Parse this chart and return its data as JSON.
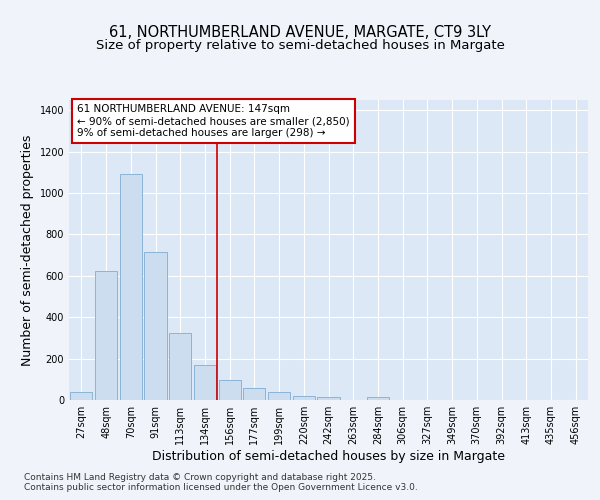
{
  "title_line1": "61, NORTHUMBERLAND AVENUE, MARGATE, CT9 3LY",
  "title_line2": "Size of property relative to semi-detached houses in Margate",
  "xlabel": "Distribution of semi-detached houses by size in Margate",
  "ylabel": "Number of semi-detached properties",
  "categories": [
    "27sqm",
    "48sqm",
    "70sqm",
    "91sqm",
    "113sqm",
    "134sqm",
    "156sqm",
    "177sqm",
    "199sqm",
    "220sqm",
    "242sqm",
    "263sqm",
    "284sqm",
    "306sqm",
    "327sqm",
    "349sqm",
    "370sqm",
    "392sqm",
    "413sqm",
    "435sqm",
    "456sqm"
  ],
  "values": [
    38,
    625,
    1090,
    715,
    325,
    170,
    95,
    60,
    38,
    20,
    14,
    0,
    14,
    0,
    0,
    0,
    0,
    0,
    0,
    0,
    0
  ],
  "bar_color": "#ccddf0",
  "bar_edge_color": "#8ab4d8",
  "vline_x": 6,
  "vline_color": "#cc0000",
  "annotation_text": "61 NORTHUMBERLAND AVENUE: 147sqm\n← 90% of semi-detached houses are smaller (2,850)\n9% of semi-detached houses are larger (298) →",
  "annotation_box_color": "#ffffff",
  "annotation_box_edge_color": "#cc0000",
  "ylim": [
    0,
    1450
  ],
  "yticks": [
    0,
    200,
    400,
    600,
    800,
    1000,
    1200,
    1400
  ],
  "fig_bg_color": "#f0f4fa",
  "plot_bg_color": "#dce8f5",
  "grid_color": "#ffffff",
  "footer_text": "Contains HM Land Registry data © Crown copyright and database right 2025.\nContains public sector information licensed under the Open Government Licence v3.0.",
  "title_fontsize": 10.5,
  "subtitle_fontsize": 9.5,
  "axis_label_fontsize": 9,
  "tick_fontsize": 7,
  "annotation_fontsize": 7.5,
  "footer_fontsize": 6.5
}
